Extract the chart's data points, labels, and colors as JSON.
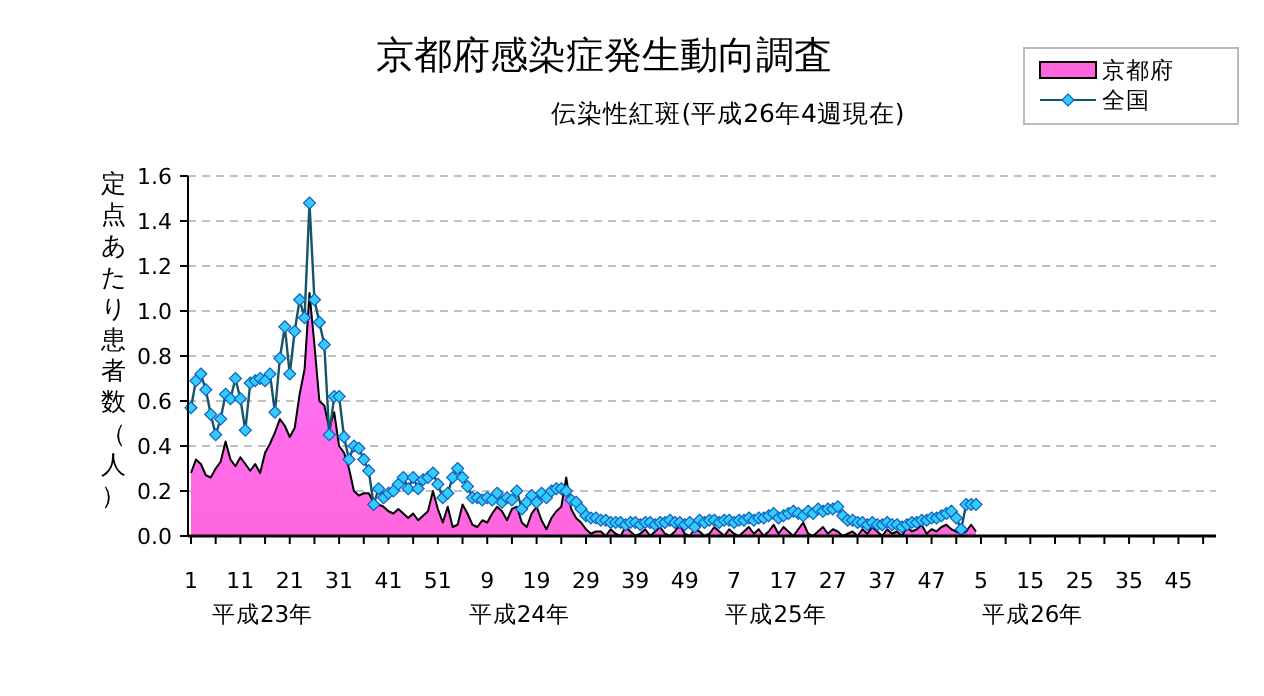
{
  "chart_data": {
    "type": "area",
    "title": "京都府感染症発生動向調査",
    "subtitle": "伝染性紅斑(平成26年4週現在)",
    "ylabel": "定点あたり患者数（人）",
    "categories": [
      "1",
      null,
      null,
      null,
      null,
      null,
      null,
      null,
      null,
      null,
      "11",
      null,
      null,
      null,
      null,
      null,
      null,
      null,
      null,
      null,
      "21",
      null,
      null,
      null,
      null,
      null,
      null,
      null,
      null,
      null,
      "31",
      null,
      null,
      null,
      null,
      null,
      null,
      null,
      null,
      null,
      "41",
      null,
      null,
      null,
      null,
      null,
      null,
      null,
      null,
      null,
      "51",
      null,
      null,
      null,
      null,
      null,
      null,
      null,
      null,
      null,
      "9",
      null,
      null,
      null,
      null,
      null,
      null,
      null,
      null,
      null,
      "19",
      null,
      null,
      null,
      null,
      null,
      null,
      null,
      null,
      null,
      "29",
      null,
      null,
      null,
      null,
      null,
      null,
      null,
      null,
      null,
      "39",
      null,
      null,
      null,
      null,
      null,
      null,
      null,
      null,
      null,
      "49",
      null,
      null,
      null,
      null,
      null,
      null,
      null,
      null,
      null,
      "7",
      null,
      null,
      null,
      null,
      null,
      null,
      null,
      null,
      null,
      "17",
      null,
      null,
      null,
      null,
      null,
      null,
      null,
      null,
      null,
      "27",
      null,
      null,
      null,
      null,
      null,
      null,
      null,
      null,
      null,
      "37",
      null,
      null,
      null,
      null,
      null,
      null,
      null,
      null,
      null,
      "47",
      null,
      null,
      null,
      null,
      null,
      null,
      null,
      null,
      null,
      "5",
      null,
      null,
      null,
      null,
      null,
      null,
      null,
      null,
      null,
      "15",
      null,
      null,
      null,
      null,
      null,
      null,
      null,
      null,
      null,
      "25",
      null,
      null,
      null,
      null,
      null,
      null,
      null,
      null,
      null,
      "35",
      null,
      null,
      null,
      null,
      null,
      null,
      null,
      null,
      null,
      "45",
      null,
      null,
      null,
      null,
      null,
      null,
      null
    ],
    "series": [
      {
        "name": "京都府",
        "type": "area",
        "color": "#ff66dd",
        "values": [
          0.28,
          0.34,
          0.32,
          0.27,
          0.26,
          0.3,
          0.33,
          0.42,
          0.34,
          0.31,
          0.35,
          0.32,
          0.29,
          0.32,
          0.28,
          0.37,
          0.41,
          0.46,
          0.52,
          0.49,
          0.44,
          0.48,
          0.63,
          0.74,
          1.08,
          0.85,
          0.6,
          0.58,
          0.48,
          0.55,
          0.4,
          0.37,
          0.3,
          0.2,
          0.18,
          0.19,
          0.19,
          0.15,
          0.14,
          0.13,
          0.11,
          0.1,
          0.12,
          0.1,
          0.08,
          0.1,
          0.07,
          0.09,
          0.11,
          0.2,
          0.12,
          0.06,
          0.13,
          0.04,
          0.05,
          0.14,
          0.1,
          0.05,
          0.04,
          0.07,
          0.06,
          0.1,
          0.13,
          0.11,
          0.07,
          0.12,
          0.13,
          0.06,
          0.04,
          0.1,
          0.13,
          0.07,
          0.03,
          0.08,
          0.11,
          0.13,
          0.26,
          0.12,
          0.08,
          0.06,
          0.03,
          0.01,
          0.02,
          0.02,
          0,
          0.03,
          0.01,
          0,
          0.04,
          0.02,
          0,
          0.01,
          0.03,
          0,
          0.02,
          0.04,
          0.01,
          0,
          0.02,
          0.05,
          0.01,
          0,
          0.03,
          0.02,
          0,
          0.01,
          0.04,
          0.02,
          0,
          0.03,
          0.01,
          0,
          0.02,
          0.04,
          0.01,
          0.03,
          0,
          0.02,
          0.05,
          0.01,
          0.04,
          0.02,
          0,
          0.03,
          0.06,
          0.01,
          0,
          0.02,
          0.04,
          0.01,
          0.03,
          0.02,
          0,
          0.01,
          0.02,
          0,
          0.03,
          0.01,
          0.04,
          0.02,
          0,
          0.03,
          0.01,
          0.02,
          0,
          0.04,
          0.02,
          0.03,
          0.05,
          0.01,
          0.03,
          0.02,
          0.04,
          0.05,
          0.03,
          0.02,
          0.01,
          0.02,
          0.05,
          0.02,
          null,
          null,
          null,
          null,
          null,
          null,
          null,
          null,
          null,
          null,
          null,
          null,
          null,
          null,
          null,
          null,
          null,
          null,
          null,
          null,
          null,
          null,
          null,
          null,
          null,
          null,
          null,
          null,
          null,
          null,
          null,
          null,
          null,
          null,
          null,
          null,
          null,
          null,
          null,
          null,
          null,
          null,
          null,
          null,
          null,
          null,
          null,
          null
        ]
      },
      {
        "name": "全国",
        "type": "line",
        "marker": "diamond",
        "color": "#33ccff",
        "values": [
          0.57,
          0.69,
          0.72,
          0.65,
          0.54,
          0.45,
          0.52,
          0.63,
          0.61,
          0.7,
          0.61,
          0.47,
          0.68,
          0.69,
          0.7,
          0.69,
          0.72,
          0.55,
          0.79,
          0.93,
          0.72,
          0.91,
          1.05,
          0.97,
          1.48,
          1.05,
          0.95,
          0.85,
          0.45,
          0.62,
          0.62,
          0.44,
          0.34,
          0.4,
          0.39,
          0.34,
          0.29,
          0.14,
          0.21,
          0.17,
          0.19,
          0.2,
          0.23,
          0.26,
          0.21,
          0.26,
          0.21,
          0.25,
          0.26,
          0.28,
          0.23,
          0.17,
          0.19,
          0.26,
          0.3,
          0.26,
          0.22,
          0.17,
          0.17,
          0.16,
          0.17,
          0.16,
          0.19,
          0.15,
          0.17,
          0.16,
          0.2,
          0.12,
          0.15,
          0.18,
          0.15,
          0.19,
          0.17,
          0.2,
          0.21,
          0.21,
          0.2,
          0.16,
          0.15,
          0.12,
          0.09,
          0.08,
          0.08,
          0.07,
          0.07,
          0.06,
          0.06,
          0.06,
          0.05,
          0.06,
          0.06,
          0.05,
          0.06,
          0.06,
          0.05,
          0.06,
          0.06,
          0.07,
          0.06,
          0.06,
          0.05,
          0.06,
          0.04,
          0.07,
          0.06,
          0.07,
          0.07,
          0.06,
          0.07,
          0.07,
          0.06,
          0.07,
          0.07,
          0.08,
          0.07,
          0.08,
          0.08,
          0.09,
          0.1,
          0.08,
          0.09,
          0.1,
          0.11,
          0.1,
          0.09,
          0.11,
          0.1,
          0.12,
          0.11,
          0.12,
          0.12,
          0.13,
          0.09,
          0.07,
          0.07,
          0.06,
          0.06,
          0.05,
          0.06,
          0.05,
          0.05,
          0.06,
          0.05,
          0.05,
          0.04,
          0.05,
          0.06,
          0.06,
          0.07,
          0.07,
          0.08,
          0.08,
          0.09,
          0.1,
          0.11,
          0.08,
          0.03,
          0.14,
          0.14,
          0.14,
          null,
          null,
          null,
          null,
          null,
          null,
          null,
          null,
          null,
          null,
          null,
          null,
          null,
          null,
          null,
          null,
          null,
          null,
          null,
          null,
          null,
          null,
          null,
          null,
          null,
          null,
          null,
          null,
          null,
          null,
          null,
          null,
          null,
          null,
          null,
          null,
          null,
          null,
          null,
          null,
          null,
          null,
          null,
          null,
          null,
          null,
          null,
          null
        ]
      }
    ],
    "ylim": [
      0,
      1.6
    ],
    "yticks": [
      {
        "value": 0,
        "label": "0.0"
      },
      0.2,
      0.4,
      0.6,
      0.8,
      {
        "value": 1,
        "label": "1.0"
      },
      1.2,
      1.4,
      1.6
    ],
    "grid": "y",
    "legend": "top right",
    "line_style": "solid",
    "annotations": [
      "平成23年",
      "平成24年",
      "平成25年",
      "平成26年"
    ]
  }
}
